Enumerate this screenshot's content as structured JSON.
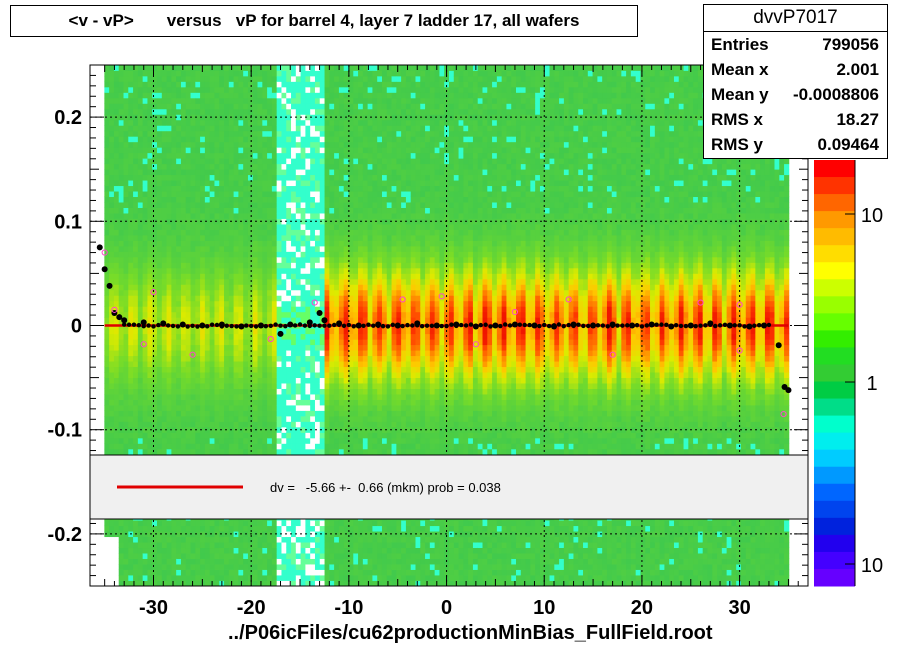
{
  "title": "<v - vP>       versus   vP for barrel 4, layer 7 ladder 17, all wafers",
  "stats": {
    "name": "dvvP7017",
    "rows": [
      {
        "label": "Entries",
        "value": "799056"
      },
      {
        "label": "Mean x",
        "value": "2.001"
      },
      {
        "label": "Mean y",
        "value": "-0.0008806"
      },
      {
        "label": "RMS x",
        "value": "18.27"
      },
      {
        "label": "RMS y",
        "value": "0.09464"
      }
    ]
  },
  "legend": {
    "text": "dv =   -5.66 +-  0.66 (mkm) prob = 0.038",
    "line_color": "#e00000"
  },
  "x_axis_title": "../P06icFiles/cu62productionMinBias_FullField.root",
  "chart_data": {
    "type": "heatmap",
    "xlim": [
      -36.5,
      37
    ],
    "ylim": [
      -0.25,
      0.25
    ],
    "x_ticks": [
      -30,
      -20,
      -10,
      0,
      10,
      20,
      30
    ],
    "y_ticks": [
      -0.2,
      -0.1,
      0,
      0.1,
      0.2
    ],
    "x_tick_labels": [
      "-30",
      "-20",
      "-10",
      "0",
      "10",
      "20",
      "30"
    ],
    "y_tick_labels": [
      "-0.2",
      "-0.1",
      "0",
      "0.1",
      "0.2"
    ],
    "grid": true,
    "colorbar_labels": [
      "10",
      "1",
      "10"
    ],
    "colors": {
      "low": "#33cc33",
      "mid": "#ffff00",
      "high": "#ff3300",
      "gap": "#00ffcc",
      "fit_line": "#e00000",
      "profile_points": "#000000",
      "open_points": "#ff44cc"
    },
    "fit": {
      "slope": 0,
      "intercept": -5.66e-05
    },
    "profile_points": [
      {
        "x": -35.5,
        "y": 0.075
      },
      {
        "x": -35,
        "y": 0.054
      },
      {
        "x": -34.5,
        "y": 0.038
      },
      {
        "x": -34,
        "y": 0.012
      },
      {
        "x": -33.5,
        "y": 0.008
      },
      {
        "x": -33,
        "y": 0.005
      },
      {
        "x": -31,
        "y": 0.003
      },
      {
        "x": -29,
        "y": 0.002
      },
      {
        "x": -27,
        "y": 0.001
      },
      {
        "x": -25,
        "y": 0.0
      },
      {
        "x": -23,
        "y": 0.001
      },
      {
        "x": -21,
        "y": -0.001
      },
      {
        "x": -19,
        "y": 0.0
      },
      {
        "x": -17,
        "y": -0.008
      },
      {
        "x": -16,
        "y": 0.001
      },
      {
        "x": -14,
        "y": 0.003
      },
      {
        "x": -13,
        "y": 0.012
      },
      {
        "x": -12.5,
        "y": 0.005
      },
      {
        "x": -11,
        "y": 0.002
      },
      {
        "x": -9,
        "y": 0.0
      },
      {
        "x": -7,
        "y": 0.001
      },
      {
        "x": -5,
        "y": 0.0
      },
      {
        "x": -3,
        "y": 0.002
      },
      {
        "x": -1,
        "y": 0.0
      },
      {
        "x": 1,
        "y": 0.001
      },
      {
        "x": 3,
        "y": -0.001
      },
      {
        "x": 5,
        "y": 0.0
      },
      {
        "x": 7,
        "y": 0.001
      },
      {
        "x": 9,
        "y": 0.0
      },
      {
        "x": 11,
        "y": -0.001
      },
      {
        "x": 13,
        "y": 0.001
      },
      {
        "x": 15,
        "y": 0.0
      },
      {
        "x": 17,
        "y": 0.001
      },
      {
        "x": 19,
        "y": 0.0
      },
      {
        "x": 21,
        "y": 0.001
      },
      {
        "x": 23,
        "y": -0.001
      },
      {
        "x": 25,
        "y": 0.0
      },
      {
        "x": 27,
        "y": 0.002
      },
      {
        "x": 29,
        "y": 0.0
      },
      {
        "x": 31,
        "y": -0.001
      },
      {
        "x": 32.5,
        "y": 0.0
      },
      {
        "x": 34,
        "y": -0.019
      },
      {
        "x": 34.6,
        "y": -0.059
      },
      {
        "x": 35,
        "y": -0.062
      }
    ],
    "open_points": [
      {
        "x": -35,
        "y": 0.07
      },
      {
        "x": -34,
        "y": 0.015
      },
      {
        "x": -31,
        "y": -0.018
      },
      {
        "x": -30,
        "y": 0.032
      },
      {
        "x": -26,
        "y": -0.028
      },
      {
        "x": -18,
        "y": -0.013
      },
      {
        "x": -13.5,
        "y": 0.022
      },
      {
        "x": -4.5,
        "y": 0.025
      },
      {
        "x": -0.5,
        "y": 0.028
      },
      {
        "x": 3,
        "y": -0.018
      },
      {
        "x": 7,
        "y": 0.013
      },
      {
        "x": 12.5,
        "y": 0.025
      },
      {
        "x": 17,
        "y": -0.028
      },
      {
        "x": 26,
        "y": 0.022
      },
      {
        "x": 30,
        "y": -0.024
      },
      {
        "x": 30,
        "y": 0.02
      },
      {
        "x": 34.5,
        "y": -0.085
      }
    ]
  }
}
